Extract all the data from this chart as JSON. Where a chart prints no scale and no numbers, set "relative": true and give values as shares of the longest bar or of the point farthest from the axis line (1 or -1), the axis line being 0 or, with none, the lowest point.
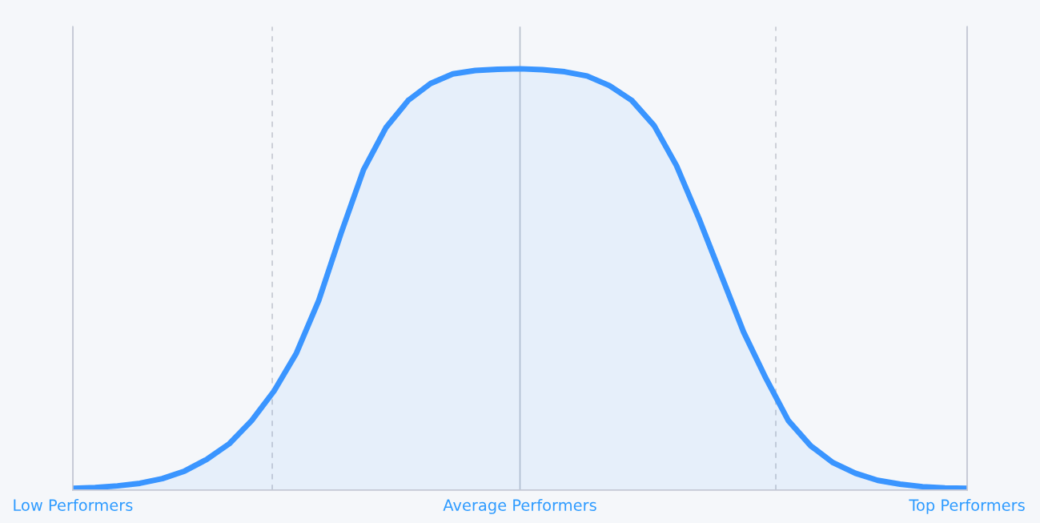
{
  "chart_data": {
    "type": "area",
    "relative": true,
    "categories": [
      "Low Performers",
      null,
      null,
      null,
      null,
      null,
      null,
      null,
      null,
      null,
      null,
      null,
      null,
      null,
      null,
      null,
      null,
      null,
      null,
      null,
      "Average Performers",
      null,
      null,
      null,
      null,
      null,
      null,
      null,
      null,
      null,
      null,
      null,
      null,
      null,
      null,
      null,
      null,
      null,
      null,
      null,
      "Top Performers"
    ],
    "series": [
      {
        "color": "#3a95ff",
        "values": [
          0.004,
          0.006,
          0.01,
          0.016,
          0.027,
          0.045,
          0.073,
          0.11,
          0.165,
          0.235,
          0.325,
          0.45,
          0.61,
          0.76,
          0.86,
          0.925,
          0.965,
          0.988,
          0.996,
          0.999,
          1.0,
          0.998,
          0.993,
          0.983,
          0.96,
          0.925,
          0.865,
          0.77,
          0.645,
          0.51,
          0.375,
          0.265,
          0.165,
          0.105,
          0.065,
          0.04,
          0.023,
          0.014,
          0.008,
          0.005,
          0.004
        ]
      }
    ],
    "grid": "x",
    "legend": false
  }
}
